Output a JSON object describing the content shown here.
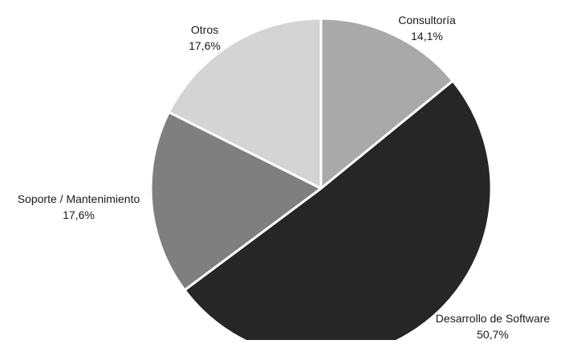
{
  "chart_data": {
    "type": "pie",
    "title": "",
    "slices": [
      {
        "label": "Consultoría",
        "value": 14.1,
        "value_label": "14,1%",
        "color": "#a9a9a9"
      },
      {
        "label": "Desarrollo de Software",
        "value": 50.7,
        "value_label": "50,7%",
        "color": "#262626"
      },
      {
        "label": "Soporte / Mantenimiento",
        "value": 17.6,
        "value_label": "17,6%",
        "color": "#7f7f7f"
      },
      {
        "label": "Otros",
        "value": 17.6,
        "value_label": "17,6%",
        "color": "#d4d4d4"
      }
    ],
    "start": "top",
    "direction": "clockwise",
    "slice_border_color": "#ffffff",
    "legend": "none",
    "labels": "outside"
  }
}
